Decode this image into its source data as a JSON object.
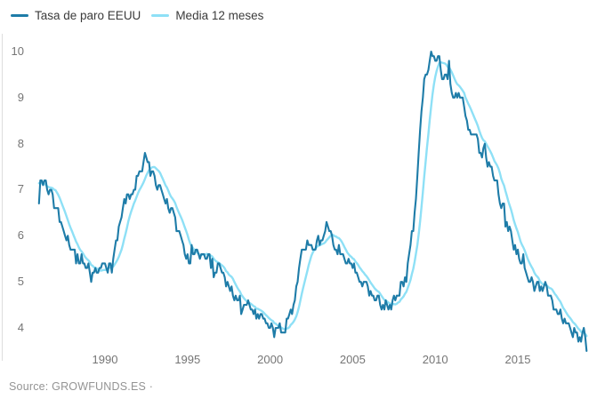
{
  "legend": {
    "items": [
      {
        "label": "Tasa de paro EEUU",
        "color": "#1e7ca8"
      },
      {
        "label": "Media 12 meses",
        "color": "#8ee0f6"
      }
    ]
  },
  "source": {
    "text": "Source: GROWFUNDS.ES ·"
  },
  "axis_colors": {
    "axis_line": "#dedede",
    "tick_text": "#757575"
  },
  "chart_data": {
    "type": "line",
    "title": "",
    "xlabel": "",
    "ylabel": "",
    "x": {
      "start_year": 1986,
      "frequency": "monthly",
      "end": "2019-03"
    },
    "y_axis": {
      "ticks": [
        10,
        9,
        8,
        7,
        6,
        5,
        4
      ],
      "range": [
        3.5,
        10.3
      ]
    },
    "x_axis": {
      "ticks": [
        1990,
        1995,
        2000,
        2005,
        2010,
        2015
      ]
    },
    "grid": false,
    "legend_position": "top-left",
    "series": [
      {
        "name": "Tasa de paro EEUU",
        "color": "#1e7ca8",
        "values": [
          6.7,
          7.2,
          7.2,
          7.1,
          7.2,
          7.2,
          7.0,
          6.9,
          7.0,
          7.0,
          6.9,
          6.6,
          6.6,
          6.6,
          6.6,
          6.3,
          6.3,
          6.2,
          6.1,
          6.0,
          5.9,
          6.0,
          5.8,
          5.7,
          5.7,
          5.7,
          5.7,
          5.4,
          5.6,
          5.4,
          5.4,
          5.6,
          5.4,
          5.4,
          5.3,
          5.3,
          5.4,
          5.2,
          5.0,
          5.2,
          5.2,
          5.3,
          5.2,
          5.2,
          5.3,
          5.3,
          5.4,
          5.4,
          5.4,
          5.3,
          5.2,
          5.4,
          5.4,
          5.2,
          5.5,
          5.7,
          5.9,
          5.9,
          6.2,
          6.3,
          6.4,
          6.6,
          6.8,
          6.7,
          6.9,
          6.9,
          6.8,
          6.9,
          6.9,
          7.0,
          7.0,
          7.3,
          7.3,
          7.4,
          7.4,
          7.4,
          7.6,
          7.8,
          7.7,
          7.6,
          7.6,
          7.3,
          7.4,
          7.4,
          7.3,
          7.1,
          7.0,
          7.1,
          7.1,
          7.0,
          6.9,
          6.8,
          6.7,
          6.8,
          6.6,
          6.5,
          6.6,
          6.6,
          6.5,
          6.4,
          6.1,
          6.1,
          6.1,
          6.0,
          5.9,
          5.8,
          5.6,
          5.5,
          5.6,
          5.4,
          5.4,
          5.8,
          5.6,
          5.6,
          5.7,
          5.7,
          5.6,
          5.5,
          5.6,
          5.6,
          5.6,
          5.5,
          5.5,
          5.6,
          5.6,
          5.3,
          5.5,
          5.1,
          5.2,
          5.2,
          5.4,
          5.4,
          5.3,
          5.2,
          5.2,
          5.1,
          4.9,
          5.0,
          4.9,
          4.8,
          4.9,
          4.7,
          4.6,
          4.7,
          4.6,
          4.6,
          4.7,
          4.3,
          4.4,
          4.5,
          4.5,
          4.5,
          4.6,
          4.5,
          4.4,
          4.4,
          4.3,
          4.4,
          4.2,
          4.3,
          4.2,
          4.3,
          4.3,
          4.2,
          4.2,
          4.1,
          4.1,
          4.0,
          4.0,
          4.1,
          4.0,
          3.8,
          4.0,
          4.0,
          4.0,
          4.1,
          3.9,
          3.9,
          3.9,
          3.9,
          4.2,
          4.2,
          4.3,
          4.4,
          4.3,
          4.5,
          4.6,
          4.9,
          5.0,
          5.3,
          5.5,
          5.7,
          5.7,
          5.7,
          5.7,
          5.9,
          5.8,
          5.8,
          5.8,
          5.7,
          5.7,
          5.7,
          5.9,
          6.0,
          5.8,
          5.9,
          5.9,
          6.0,
          6.1,
          6.3,
          6.2,
          6.1,
          6.1,
          6.0,
          5.8,
          5.7,
          5.7,
          5.6,
          5.8,
          5.6,
          5.6,
          5.6,
          5.5,
          5.4,
          5.4,
          5.5,
          5.4,
          5.4,
          5.3,
          5.4,
          5.2,
          5.2,
          5.1,
          5.0,
          5.0,
          4.9,
          5.0,
          5.0,
          5.0,
          4.9,
          4.7,
          4.8,
          4.7,
          4.7,
          4.6,
          4.6,
          4.7,
          4.7,
          4.5,
          4.4,
          4.5,
          4.4,
          4.6,
          4.5,
          4.4,
          4.5,
          4.4,
          4.6,
          4.7,
          4.6,
          4.7,
          4.7,
          4.7,
          5.0,
          5.0,
          4.9,
          5.1,
          5.0,
          5.4,
          5.6,
          5.8,
          6.1,
          6.1,
          6.5,
          6.8,
          7.3,
          7.8,
          8.3,
          8.7,
          9.0,
          9.4,
          9.5,
          9.5,
          9.6,
          9.8,
          10.0,
          9.9,
          9.9,
          9.8,
          9.8,
          9.9,
          9.9,
          9.6,
          9.4,
          9.4,
          9.5,
          9.5,
          9.4,
          9.8,
          9.3,
          9.1,
          9.0,
          9.0,
          9.1,
          9.0,
          9.1,
          9.0,
          9.0,
          9.0,
          8.8,
          8.6,
          8.5,
          8.3,
          8.3,
          8.2,
          8.2,
          8.2,
          8.2,
          8.2,
          8.1,
          7.8,
          7.8,
          7.7,
          7.9,
          8.0,
          7.7,
          7.5,
          7.6,
          7.5,
          7.5,
          7.3,
          7.2,
          7.2,
          7.2,
          6.9,
          6.7,
          6.6,
          6.7,
          6.7,
          6.2,
          6.3,
          6.1,
          6.2,
          6.1,
          5.9,
          5.7,
          5.8,
          5.6,
          5.7,
          5.5,
          5.4,
          5.4,
          5.6,
          5.3,
          5.2,
          5.1,
          5.0,
          5.0,
          5.1,
          5.0,
          4.8,
          4.9,
          5.0,
          5.0,
          4.8,
          4.9,
          4.8,
          4.9,
          5.0,
          4.9,
          4.7,
          4.7,
          4.7,
          4.6,
          4.4,
          4.4,
          4.4,
          4.3,
          4.3,
          4.4,
          4.2,
          4.1,
          4.2,
          4.1,
          4.1,
          4.1,
          4.0,
          3.9,
          3.8,
          4.0,
          3.9,
          3.9,
          3.7,
          3.8,
          3.7,
          3.9,
          4.0,
          3.8,
          3.5
        ]
      },
      {
        "name": "Media 12 meses",
        "color": "#8ee0f6",
        "derived": "trailing_12_month_mean_of_series_0",
        "seed_values_1985": [
          7.3,
          7.2,
          7.2,
          7.3,
          7.2,
          7.4,
          7.4,
          7.1,
          7.1,
          7.1,
          7.0,
          7.0
        ]
      }
    ]
  }
}
